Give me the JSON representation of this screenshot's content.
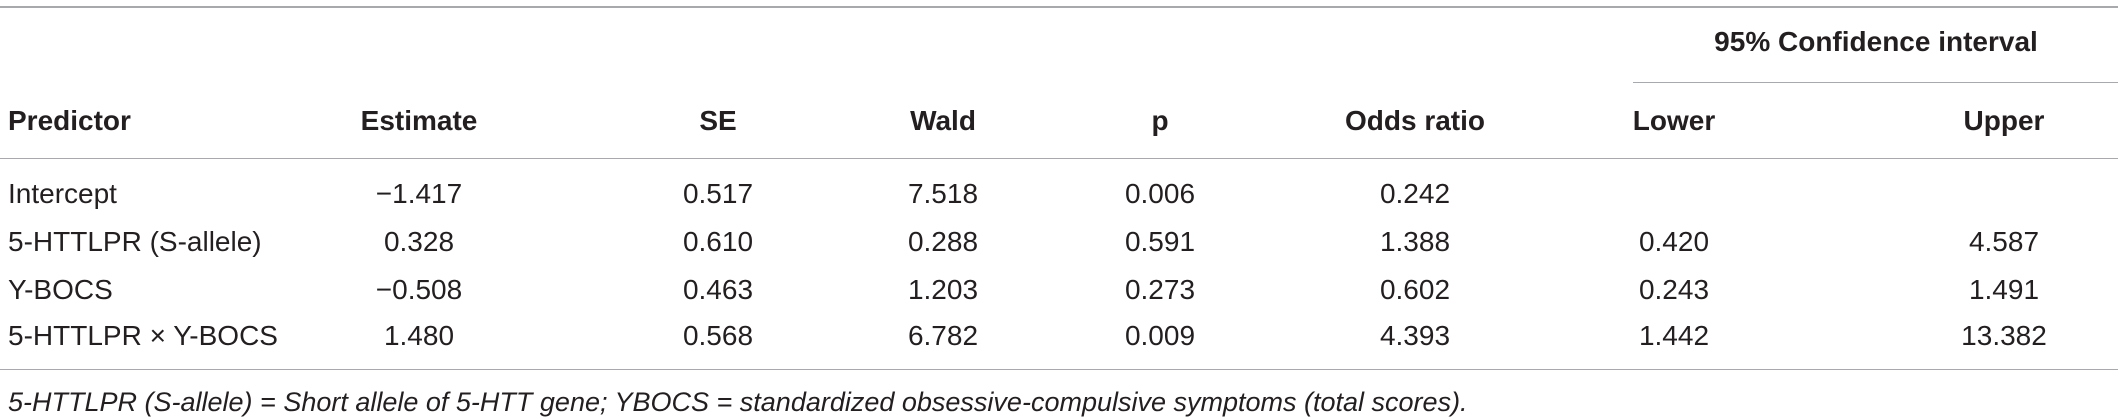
{
  "table": {
    "ci_group_header": "95% Confidence interval",
    "columns": [
      "Predictor",
      "Estimate",
      "SE",
      "Wald",
      "p",
      "Odds ratio",
      "Lower",
      "Upper"
    ],
    "rows": [
      [
        "Intercept",
        "−1.417",
        "0.517",
        "7.518",
        "0.006",
        "0.242",
        "",
        ""
      ],
      [
        "5-HTTLPR (S-allele)",
        "0.328",
        "0.610",
        "0.288",
        "0.591",
        "1.388",
        "0.420",
        "4.587"
      ],
      [
        "Y-BOCS",
        "−0.508",
        "0.463",
        "1.203",
        "0.273",
        "0.602",
        "0.243",
        "1.491"
      ],
      [
        "5-HTTLPR × Y-BOCS",
        "1.480",
        "0.568",
        "6.782",
        "0.009",
        "4.393",
        "1.442",
        "13.382"
      ]
    ],
    "footnote": "5-HTTLPR (S-allele) = Short allele of 5-HTT gene; YBOCS = standardized obsessive-compulsive symptoms (total scores)."
  }
}
